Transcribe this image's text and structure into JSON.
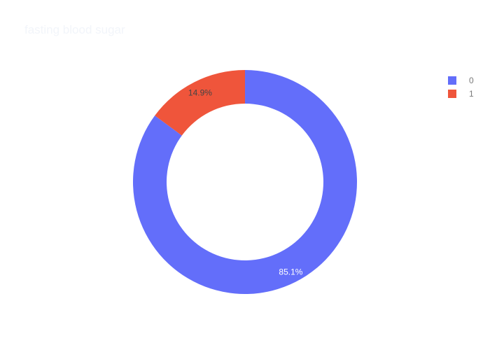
{
  "chart_data": {
    "type": "pie",
    "title": "fasting blood sugar",
    "hole": true,
    "categories": [
      "0",
      "1"
    ],
    "values": [
      85.1,
      14.9
    ],
    "labels": [
      "85.1%",
      "14.9%"
    ],
    "colors": [
      "#636efa",
      "#ef553b"
    ],
    "label_colors": [
      "#ffffff",
      "#444444"
    ],
    "legend": {
      "position": "top-right",
      "items": [
        {
          "label": "0",
          "color": "#636efa"
        },
        {
          "label": "1",
          "color": "#ef553b"
        }
      ]
    }
  }
}
